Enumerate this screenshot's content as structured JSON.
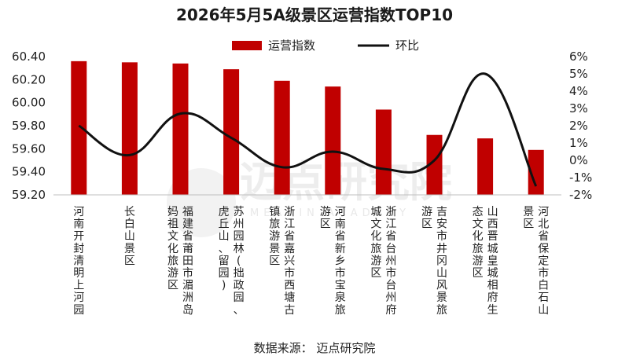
{
  "title": "2026年5月5A级景区运营指数TOP10",
  "source": "数据来源：  迈点研究院",
  "watermark": {
    "text": "迈点研究院",
    "subtext": "MEADIN ACADEMY"
  },
  "colors": {
    "bar": "#c00000",
    "line": "#111111",
    "axis": "#bfbfbf"
  },
  "chart_data": {
    "type": "bar",
    "title": "2026年5月5A级景区运营指数TOP10",
    "categories": [
      "河南开封清明上河园",
      "长白山景区",
      "福建省莆田市湄洲岛妈祖文化旅游区",
      "苏州园林(拙政园、虎丘山、留园)",
      "浙江省嘉兴市西塘古镇旅游景区",
      "河南省新乡市宝泉旅游区",
      "浙江省台州市台州府城文化旅游区",
      "吉安市井冈山风景旅游区",
      "山西晋城皇城相府生态文化旅游区",
      "河北省保定市白石山景区"
    ],
    "category_lines": [
      [
        "河南开封清明上河园"
      ],
      [
        "长白山景区"
      ],
      [
        "福建省莆田市湄洲岛",
        "妈祖文化旅游区"
      ],
      [
        "苏州园林(拙政园、",
        "虎丘山、留园)"
      ],
      [
        "浙江省嘉兴市西塘古",
        "镇旅游景区"
      ],
      [
        "河南省新乡市宝泉旅",
        "游区"
      ],
      [
        "浙江省台州市台州府",
        "城文化旅游区"
      ],
      [
        "吉安市井冈山风景旅",
        "游区"
      ],
      [
        "山西晋城皇城相府生",
        "态文化旅游区"
      ],
      [
        "河北省保定市白石山",
        "景区"
      ]
    ],
    "series": [
      {
        "name": "运营指数",
        "type": "bar",
        "axis": "left",
        "values": [
          60.36,
          60.35,
          60.34,
          60.29,
          60.19,
          60.14,
          59.94,
          59.72,
          59.69,
          59.59
        ]
      },
      {
        "name": "环比",
        "type": "line",
        "axis": "right",
        "values": [
          2.0,
          0.3,
          2.7,
          1.3,
          -0.4,
          0.5,
          -0.5,
          0.0,
          5.0,
          -1.5
        ]
      }
    ],
    "left_axis": {
      "min": 59.2,
      "max": 60.4,
      "ticks": [
        "60.40",
        "60.20",
        "60.00",
        "59.80",
        "59.60",
        "59.40",
        "59.20"
      ],
      "tick_values": [
        60.4,
        60.2,
        60.0,
        59.8,
        59.6,
        59.4,
        59.2
      ]
    },
    "right_axis": {
      "min": -2,
      "max": 6,
      "ticks": [
        "6%",
        "5%",
        "4%",
        "3%",
        "2%",
        "1%",
        "0%",
        "-1%",
        "-2%"
      ],
      "tick_values": [
        6,
        5,
        4,
        3,
        2,
        1,
        0,
        -1,
        -2
      ]
    },
    "legend": {
      "position": "top",
      "items": [
        "运营指数",
        "环比"
      ]
    },
    "grid": false
  }
}
